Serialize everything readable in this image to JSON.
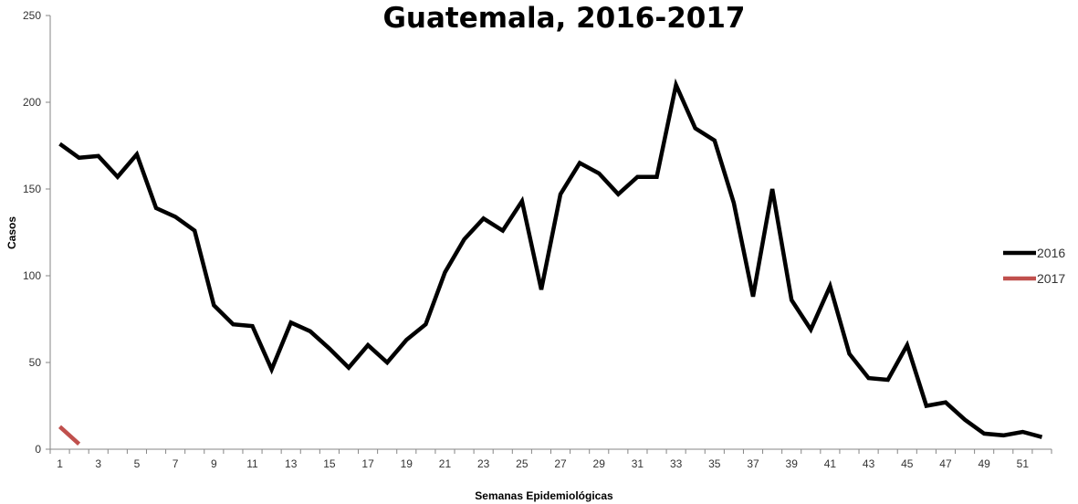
{
  "chart_data": {
    "type": "line",
    "title": "Guatemala, 2016-2017",
    "xlabel": "Semanas Epidemiológicas",
    "ylabel": "Casos",
    "ylim": [
      0,
      250
    ],
    "yticks": [
      0,
      50,
      100,
      150,
      200,
      250
    ],
    "xticks": [
      1,
      3,
      5,
      7,
      9,
      11,
      13,
      15,
      17,
      19,
      21,
      23,
      25,
      27,
      29,
      31,
      33,
      35,
      37,
      39,
      41,
      43,
      45,
      47,
      49,
      51
    ],
    "xlim": [
      1,
      52
    ],
    "grid": false,
    "legend_position": "right",
    "series": [
      {
        "name": "2016",
        "color": "#000000",
        "x": [
          1,
          2,
          3,
          4,
          5,
          6,
          7,
          8,
          9,
          10,
          11,
          12,
          13,
          14,
          15,
          16,
          17,
          18,
          19,
          20,
          21,
          22,
          23,
          24,
          25,
          26,
          27,
          28,
          29,
          30,
          31,
          32,
          33,
          34,
          35,
          36,
          37,
          38,
          39,
          40,
          41,
          42,
          43,
          44,
          45,
          46,
          47,
          48,
          49,
          50,
          51,
          52
        ],
        "values": [
          176,
          168,
          169,
          157,
          170,
          139,
          134,
          126,
          83,
          72,
          71,
          46,
          73,
          68,
          58,
          47,
          60,
          50,
          63,
          72,
          102,
          121,
          133,
          126,
          143,
          92,
          147,
          165,
          159,
          147,
          157,
          157,
          210,
          185,
          178,
          142,
          88,
          150,
          86,
          69,
          94,
          55,
          41,
          40,
          60,
          25,
          27,
          17,
          9,
          8,
          10,
          7
        ]
      },
      {
        "name": "2017",
        "color": "#c0504d",
        "x": [
          1,
          2
        ],
        "values": [
          13,
          3
        ]
      }
    ]
  }
}
